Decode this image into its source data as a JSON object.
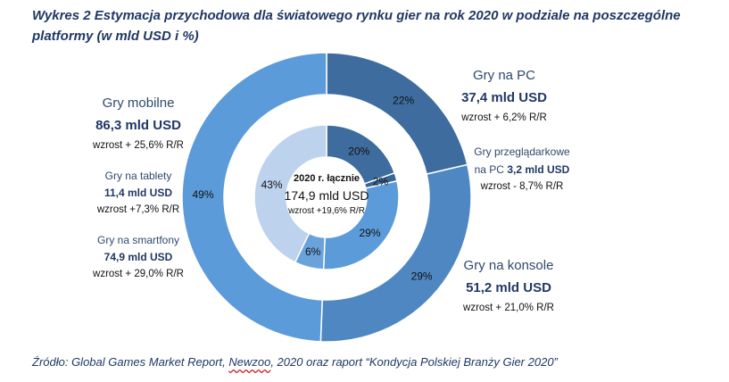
{
  "title": "Wykres 2 Estymacja przychodowa dla światowego rynku gier na rok 2020 w podziale na poszczególne platformy (w mld USD i %)",
  "center": {
    "line1": "2020 r. łącznie",
    "line2": "174,9 mld USD",
    "line3": "wzrost +19,6% R/R"
  },
  "labels": {
    "pc": {
      "name": "Gry na PC",
      "value": "37,4 mld USD",
      "growth": "wzrost + 6,2% R/R"
    },
    "browser": {
      "name1": "Gry przeglądarkowe",
      "name2": "na PC",
      "value": "3,2 mld USD",
      "growth": "wzrost - 8,7% R/R"
    },
    "console": {
      "name": "Gry na konsole",
      "value": "51,2 mld USD",
      "growth": "wzrost + 21,0% R/R"
    },
    "mobile": {
      "name": "Gry mobilne",
      "value": "86,3 mld USD",
      "growth": "wzrost + 25,6% R/R"
    },
    "tablets": {
      "name": "Gry na tablety",
      "value": "11,4 mld USD",
      "growth": "wzrost +7,3% R/R"
    },
    "smartphones": {
      "name": "Gry na smartfony",
      "value": "74,9 mld USD",
      "growth": "wzrost + 29,0% R/R"
    }
  },
  "source": {
    "before": "Źródło: Global Games Market Report, ",
    "newzoo": "Newzoo",
    "after": ", 2020 oraz raport “Kondycja Polskiej Branży Gier 2020”"
  },
  "chart_data": {
    "type": "pie",
    "outer": {
      "segments": [
        {
          "label": "22%",
          "value": 37.4,
          "color": "#3e6c9e"
        },
        {
          "label": "29%",
          "value": 51.2,
          "color": "#4f87c2"
        },
        {
          "label": "49%",
          "value": 86.3,
          "color": "#5b9bd9"
        }
      ]
    },
    "inner": {
      "segments": [
        {
          "label": "20%",
          "value": 34.2,
          "color": "#3e6c9e"
        },
        {
          "label": "2%",
          "value": 3.2,
          "color": "#3a6695"
        },
        {
          "label": "29%",
          "value": 51.2,
          "color": "#5b9bd9"
        },
        {
          "label": "6%",
          "value": 11.4,
          "color": "#6aa3dc"
        },
        {
          "label": "43%",
          "value": 74.9,
          "color": "#bcd2ed"
        }
      ]
    }
  }
}
